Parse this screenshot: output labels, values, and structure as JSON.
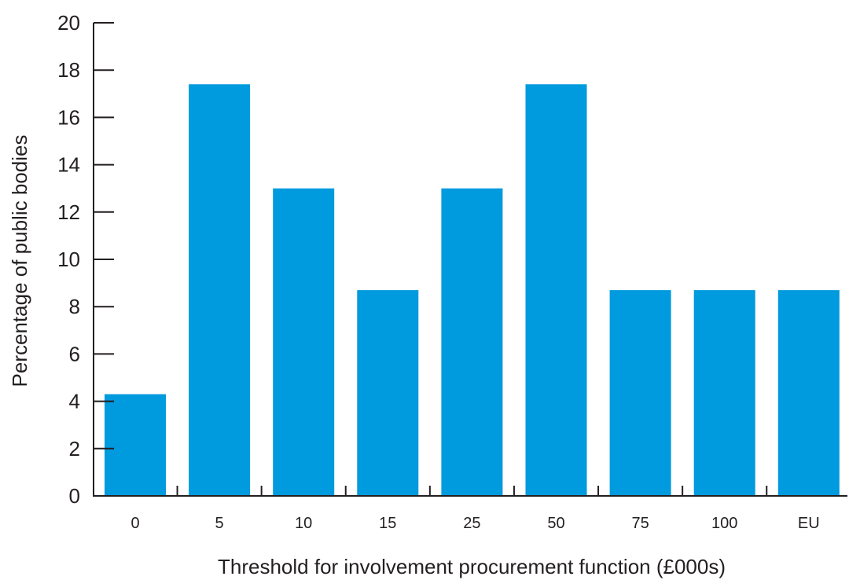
{
  "chart_data": {
    "type": "bar",
    "title": "",
    "xlabel": "Threshold for involvement procurement function (£000s)",
    "ylabel": "Percentage of public bodies",
    "categories": [
      "0",
      "5",
      "10",
      "15",
      "25",
      "50",
      "75",
      "100",
      "EU"
    ],
    "values": [
      4.3,
      17.4,
      13.0,
      8.7,
      13.0,
      17.4,
      8.7,
      8.7,
      8.7
    ],
    "ylim": [
      0,
      20
    ],
    "yticks": [
      "0",
      "2",
      "4",
      "6",
      "8",
      "10",
      "12",
      "14",
      "16",
      "18",
      "20"
    ],
    "grid": false,
    "legend": "none",
    "colors": {
      "bar": "#009ADE",
      "axis": "#231F20"
    }
  }
}
